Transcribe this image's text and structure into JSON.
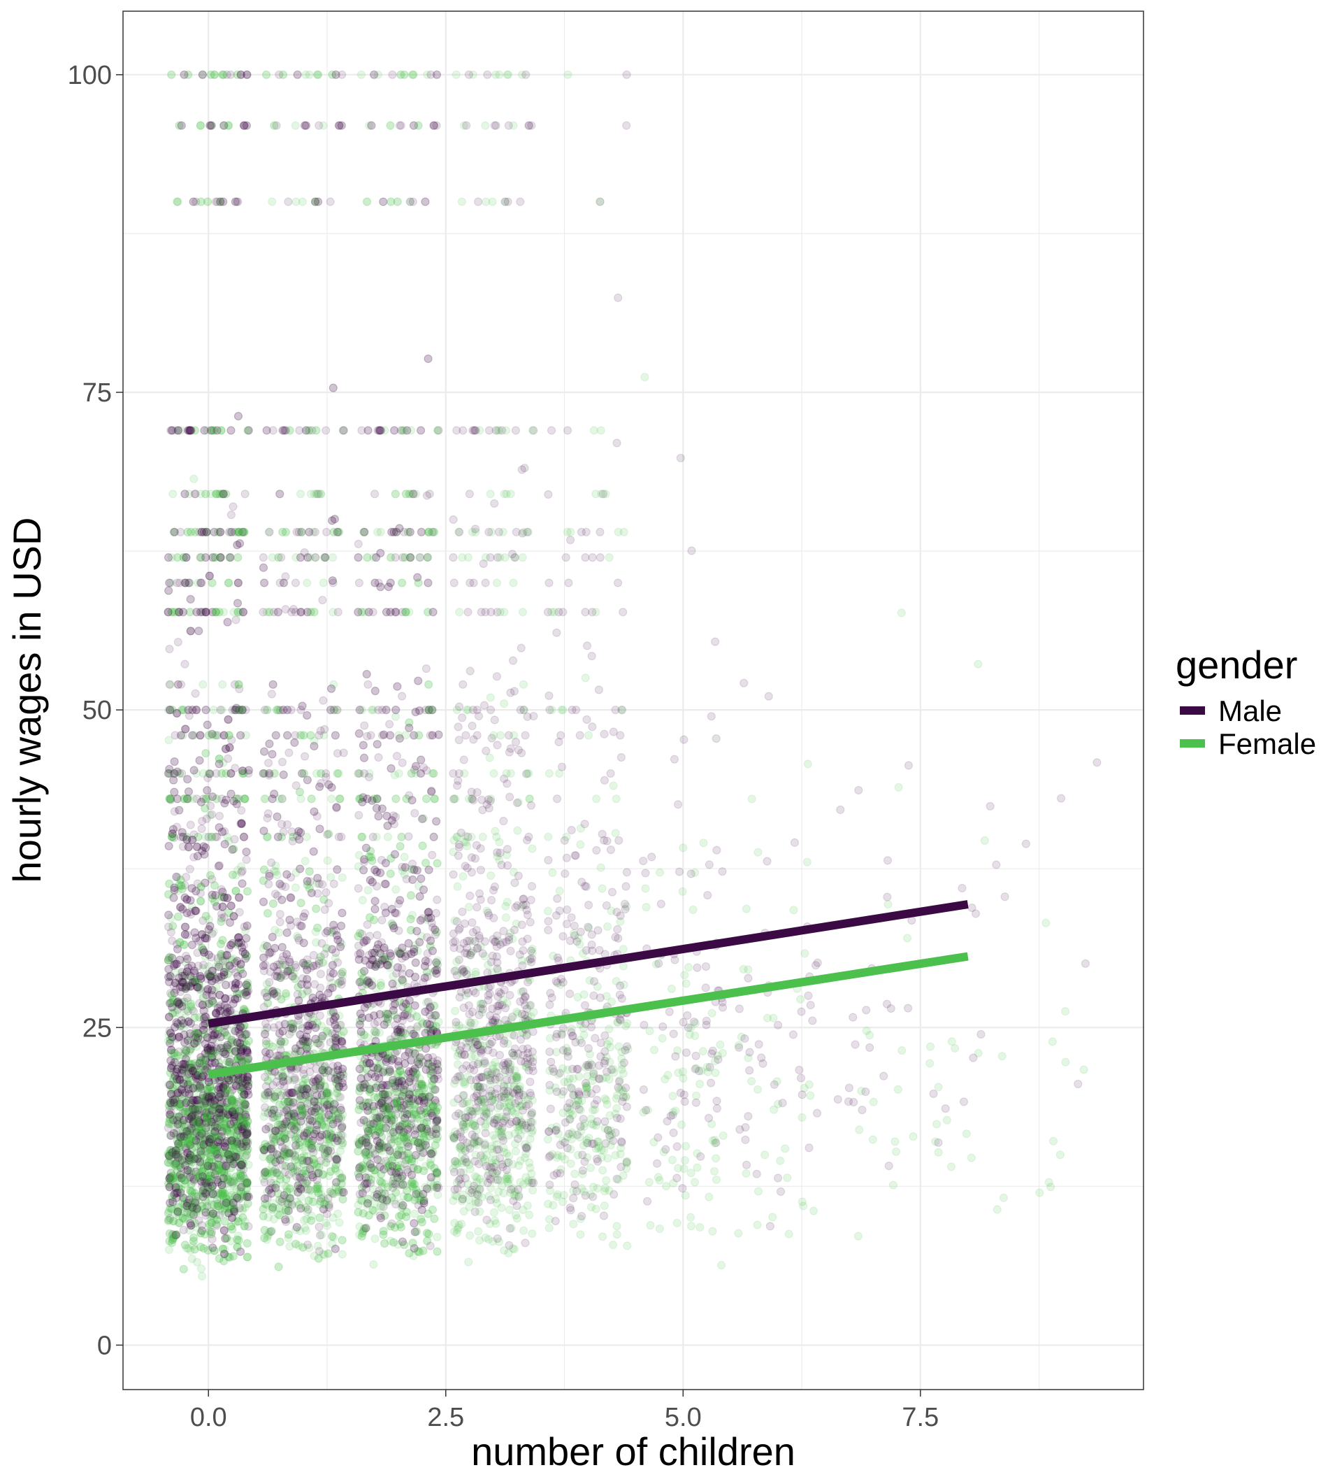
{
  "chart_data": {
    "type": "scatter",
    "title": "",
    "xlabel": "number of children",
    "ylabel": "hourly wages in USD",
    "xlim": [
      -0.9,
      9.85
    ],
    "ylim": [
      -3.5,
      105
    ],
    "x_ticks": [
      0,
      2.5,
      5,
      7.5
    ],
    "x_tick_labels": [
      "0.0",
      "2.5",
      "5.0",
      "7.5"
    ],
    "y_ticks": [
      0,
      25,
      50,
      75,
      100
    ],
    "y_tick_labels": [
      "0",
      "25",
      "50",
      "75",
      "100"
    ],
    "grid": true,
    "legend": {
      "title": "gender",
      "position": "right",
      "entries": [
        "Male",
        "Female"
      ]
    },
    "colors": {
      "Male": "#3b0a45",
      "Female": "#4cc04c",
      "point_male": "#3b0a45",
      "point_female": "#4cc04c"
    },
    "points_note_jitter": 0.4,
    "points_per_children_group": {
      "0": 3600,
      "1": 1800,
      "2": 2000,
      "3": 1000,
      "4": 500,
      "5": 160,
      "6": 80,
      "7": 40,
      "8": 30,
      "9": 15
    },
    "series": [
      {
        "name": "Male",
        "fit_line": {
          "x": [
            0,
            8
          ],
          "y": [
            25.3,
            34.7
          ]
        }
      },
      {
        "name": "Female",
        "fit_line": {
          "x": [
            0,
            8
          ],
          "y": [
            21.3,
            30.6
          ]
        }
      }
    ]
  }
}
